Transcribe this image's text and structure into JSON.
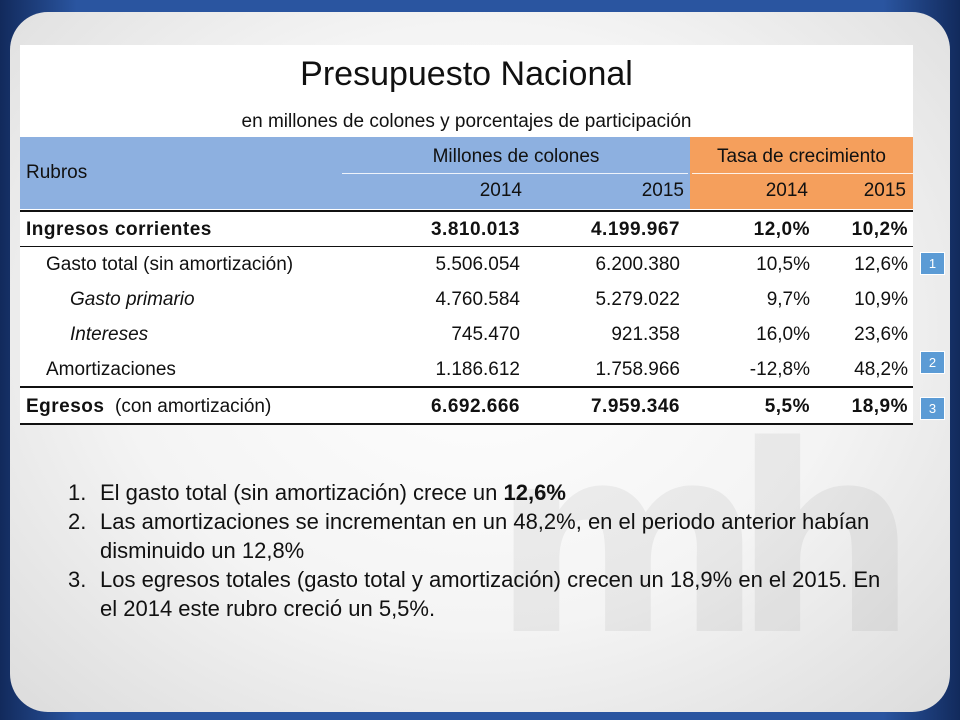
{
  "title": "Presupuesto Nacional",
  "subtitle": "en millones de colones y porcentajes de participación",
  "header": {
    "rubros": "Rubros",
    "group_millones": "Millones de colones",
    "group_tasa": "Tasa de crecimiento",
    "y2014a": "2014",
    "y2015a": "2015",
    "y2014b": "2014",
    "y2015b": "2015"
  },
  "rows": [
    {
      "label": "Ingresos corrientes",
      "m2014": "3.810.013",
      "m2015": "4.199.967",
      "t2014": "12,0%",
      "t2015": "10,2%"
    },
    {
      "label": "Gasto total (sin amortización)",
      "m2014": "5.506.054",
      "m2015": "6.200.380",
      "t2014": "10,5%",
      "t2015": "12,6%"
    },
    {
      "label": "Gasto primario",
      "m2014": "4.760.584",
      "m2015": "5.279.022",
      "t2014": "9,7%",
      "t2015": "10,9%"
    },
    {
      "label": "Intereses",
      "m2014": "745.470",
      "m2015": "921.358",
      "t2014": "16,0%",
      "t2015": "23,6%"
    },
    {
      "label": "Amortizaciones",
      "m2014": "1.186.612",
      "m2015": "1.758.966",
      "t2014": "-12,8%",
      "t2015": "48,2%"
    },
    {
      "label_main": "Egresos",
      "label_rest": "(con amortización)",
      "m2014": "6.692.666",
      "m2015": "7.959.346",
      "t2014": "5,5%",
      "t2015": "18,9%"
    }
  ],
  "badges": [
    "1",
    "2",
    "3"
  ],
  "notes": [
    {
      "n": "1.",
      "text": "El gasto total (sin amortización) crece un ",
      "bold": "12,6%"
    },
    {
      "n": "2.",
      "text": "Las amortizaciones se incrementan en un 48,2%, en el periodo anterior habían disminuido un 12,8%"
    },
    {
      "n": "3.",
      "text": "Los egresos totales (gasto total y amortización) crecen un 18,9% en el 2015. En el 2014 este rubro creció un 5,5%."
    }
  ],
  "watermark": "mh",
  "colors": {
    "header_blue": "#8db0e0",
    "header_orange": "#f59f5c",
    "badge_blue": "#5b9bd5",
    "frame_blue": "#2a55a0"
  }
}
